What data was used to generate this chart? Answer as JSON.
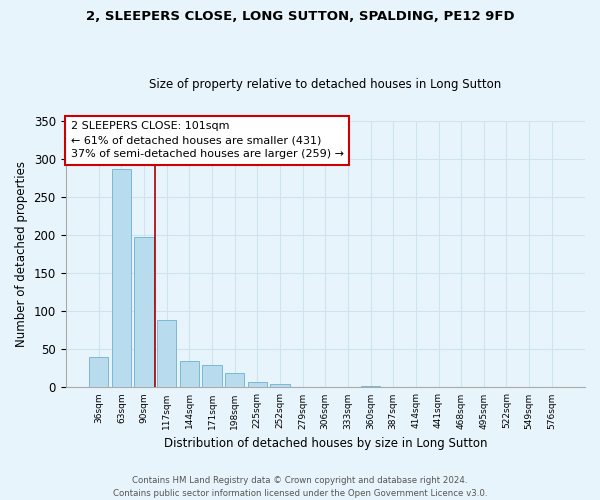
{
  "title": "2, SLEEPERS CLOSE, LONG SUTTON, SPALDING, PE12 9FD",
  "subtitle": "Size of property relative to detached houses in Long Sutton",
  "xlabel": "Distribution of detached houses by size in Long Sutton",
  "ylabel": "Number of detached properties",
  "bar_values": [
    40,
    287,
    198,
    89,
    35,
    30,
    19,
    7,
    4,
    0,
    0,
    0,
    2,
    0,
    0,
    0,
    0,
    0,
    0,
    0,
    0
  ],
  "bar_labels": [
    "36sqm",
    "63sqm",
    "90sqm",
    "117sqm",
    "144sqm",
    "171sqm",
    "198sqm",
    "225sqm",
    "252sqm",
    "279sqm",
    "306sqm",
    "333sqm",
    "360sqm",
    "387sqm",
    "414sqm",
    "441sqm",
    "468sqm",
    "495sqm",
    "522sqm",
    "549sqm",
    "576sqm"
  ],
  "bar_color": "#b8dced",
  "bar_edge_color": "#7ab8d4",
  "grid_color": "#cce4f0",
  "annotation_text": "2 SLEEPERS CLOSE: 101sqm\n← 61% of detached houses are smaller (431)\n37% of semi-detached houses are larger (259) →",
  "annotation_box_color": "#ffffff",
  "annotation_box_edge": "#cc0000",
  "property_line_color": "#aa0000",
  "ylim": [
    0,
    350
  ],
  "yticks": [
    0,
    50,
    100,
    150,
    200,
    250,
    300,
    350
  ],
  "footnote_line1": "Contains HM Land Registry data © Crown copyright and database right 2024.",
  "footnote_line2": "Contains public sector information licensed under the Open Government Licence v3.0.",
  "bg_color": "#e8f4fb",
  "plot_bg_color": "#e8f4fb"
}
